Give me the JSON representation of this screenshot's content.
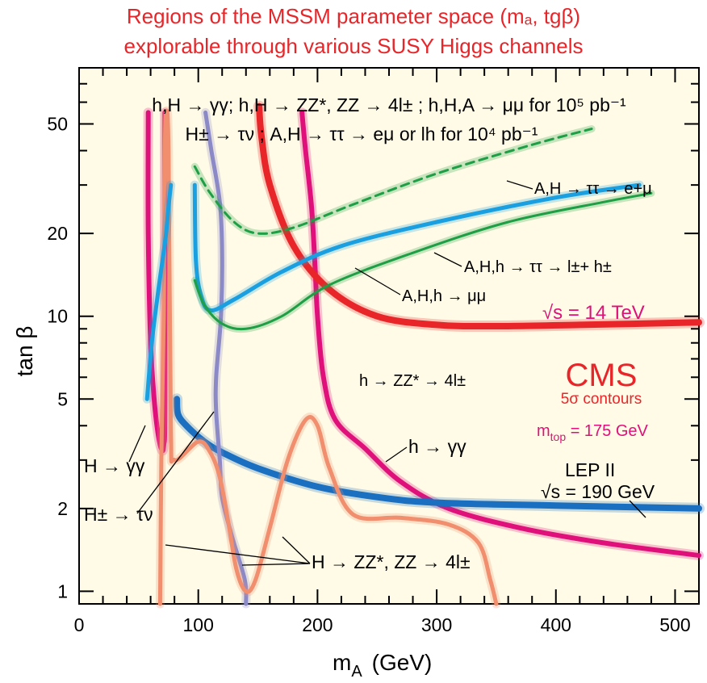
{
  "chart_data": {
    "type": "line",
    "title": [
      "Regions of the MSSM parameter space  (mₐ, tgβ)",
      "explorable through various  SUSY Higgs channels"
    ],
    "xlabel": "m",
    "xlabel_sub": "A",
    "xlabel_unit": "(GeV)",
    "ylabel": "tan β",
    "xlim": [
      0,
      520
    ],
    "ylim": [
      0.9,
      80
    ],
    "yscale": "log",
    "x_ticks": [
      "0",
      "100",
      "200",
      "300",
      "400",
      "500"
    ],
    "x_tick_values": [
      0,
      100,
      200,
      300,
      400,
      500
    ],
    "y_ticks": [
      "1",
      "2",
      "5",
      "10",
      "20",
      "50"
    ],
    "y_tick_values": [
      1,
      2,
      5,
      10,
      20,
      50
    ],
    "background_color": "#fffbe6",
    "header_lines": [
      "h,H → γγ;  h,H → ZZ*, ZZ → 4l± ; h,H,A →  μμ for 10⁵ pb⁻¹",
      "H± → τν ; A,H → ττ → eμ  or  lh  for 10⁴ pb⁻¹"
    ],
    "annotations": {
      "tautau_emu": "A,H → ττ → e+μ",
      "tautau_lh": "A,H,h → ττ → l±+ h±",
      "mumu": "A,H,h → μμ",
      "sqrt_s": "√s = 14 TeV",
      "zz_light": "h → ZZ* → 4l±",
      "cms": "CMS",
      "contours": "5σ contours",
      "mtop": "m",
      "mtop_sub": "top",
      "mtop_val": " = 175 GeV",
      "h_gamgam": "h → γγ",
      "lep": "LEP II",
      "lep_sqrt": "√s = 190 GeV",
      "H_gamgam": "H → γγ",
      "Hpm_taunu": "H± → τν",
      "H_zz": "H → ZZ*, ZZ → 4l±"
    },
    "series": [
      {
        "id": "h-gamgam",
        "color": "#e0107a",
        "width": 6,
        "points": [
          [
            187,
            55
          ],
          [
            190,
            40
          ],
          [
            195,
            25
          ],
          [
            198,
            15
          ],
          [
            200,
            10
          ],
          [
            205,
            6
          ],
          [
            215,
            4.2
          ],
          [
            240,
            3.3
          ],
          [
            270,
            2.5
          ],
          [
            310,
            2.0
          ],
          [
            370,
            1.7
          ],
          [
            440,
            1.5
          ],
          [
            520,
            1.35
          ]
        ]
      },
      {
        "id": "h-zz-4l",
        "color": "#e8262a",
        "width": 8,
        "points": [
          [
            151,
            58
          ],
          [
            153,
            45
          ],
          [
            160,
            30
          ],
          [
            180,
            18
          ],
          [
            210,
            12.5
          ],
          [
            250,
            10
          ],
          [
            300,
            9.3
          ],
          [
            350,
            9.2
          ],
          [
            420,
            9.3
          ],
          [
            520,
            9.5
          ]
        ]
      },
      {
        "id": "lep-ii",
        "color": "#1a6fc0",
        "width": 8,
        "points": [
          [
            82,
            5
          ],
          [
            83,
            4.4
          ],
          [
            90,
            4
          ],
          [
            105,
            3.5
          ],
          [
            120,
            3.2
          ],
          [
            150,
            2.8
          ],
          [
            200,
            2.4
          ],
          [
            250,
            2.2
          ],
          [
            300,
            2.1
          ],
          [
            400,
            2.05
          ],
          [
            520,
            2.0
          ]
        ]
      },
      {
        "id": "H-gamgam-left",
        "color": "#e0107a",
        "width": 6,
        "points": [
          [
            58,
            55
          ],
          [
            58,
            20
          ],
          [
            60,
            8
          ],
          [
            63,
            5
          ],
          [
            66,
            3.8
          ],
          [
            69,
            3.3
          ],
          [
            71,
            3.4
          ],
          [
            72,
            5
          ],
          [
            72,
            55
          ]
        ]
      },
      {
        "id": "Hpm-taunu",
        "color": "#8b89c6",
        "width": 5,
        "points": [
          [
            106,
            55
          ],
          [
            111,
            40
          ],
          [
            118,
            26
          ],
          [
            120,
            17
          ],
          [
            119,
            10
          ],
          [
            115,
            6
          ],
          [
            115,
            4.5
          ],
          [
            118,
            3
          ],
          [
            120,
            2.2
          ],
          [
            128,
            1.6
          ],
          [
            139,
            1.1
          ],
          [
            140,
            0.9
          ]
        ]
      },
      {
        "id": "H-zz-4l",
        "color": "#f08e6e",
        "width": 5,
        "points": [
          [
            68,
            0.9
          ],
          [
            69,
            3
          ],
          [
            71,
            10
          ],
          [
            72,
            40
          ],
          [
            73,
            55
          ],
          [
            75,
            40
          ],
          [
            77,
            4
          ],
          [
            80,
            3
          ],
          [
            100,
            3.5
          ],
          [
            110,
            3.2
          ],
          [
            118,
            2.6
          ],
          [
            125,
            1.8
          ],
          [
            132,
            1.2
          ],
          [
            140,
            1.0
          ],
          [
            148,
            1.1
          ],
          [
            160,
            1.7
          ],
          [
            175,
            3.0
          ],
          [
            190,
            4.2
          ],
          [
            200,
            4.0
          ],
          [
            210,
            2.8
          ],
          [
            230,
            1.9
          ],
          [
            270,
            1.85
          ],
          [
            310,
            1.75
          ],
          [
            335,
            1.5
          ],
          [
            345,
            1.1
          ],
          [
            350,
            0.9
          ]
        ]
      },
      {
        "id": "mumu",
        "color": "#1a9fe0",
        "width": 5,
        "points": [
          [
            97,
            30
          ],
          [
            98,
            16
          ],
          [
            102,
            12
          ],
          [
            110,
            10.5
          ],
          [
            130,
            11.5
          ],
          [
            170,
            14.5
          ],
          [
            220,
            18
          ],
          [
            300,
            22
          ],
          [
            400,
            27
          ],
          [
            470,
            30
          ]
        ]
      },
      {
        "id": "tautau-lh",
        "color": "#1e9e45",
        "width": 3,
        "points": [
          [
            97,
            13.5
          ],
          [
            105,
            11
          ],
          [
            120,
            9.4
          ],
          [
            140,
            9.0
          ],
          [
            170,
            10
          ],
          [
            210,
            13
          ],
          [
            280,
            17
          ],
          [
            360,
            22
          ],
          [
            440,
            26
          ],
          [
            480,
            28
          ]
        ]
      },
      {
        "id": "tautau-emu",
        "color": "#1e9e45",
        "width": 3,
        "dashed": true,
        "points": [
          [
            97,
            35
          ],
          [
            110,
            28
          ],
          [
            130,
            22
          ],
          [
            150,
            20
          ],
          [
            180,
            21
          ],
          [
            230,
            25.5
          ],
          [
            300,
            33
          ],
          [
            380,
            42
          ],
          [
            430,
            48
          ]
        ]
      },
      {
        "id": "H-gamgam-blue",
        "color": "#1a9fe0",
        "width": 5,
        "points": [
          [
            57,
            5
          ],
          [
            61,
            8
          ],
          [
            66,
            12
          ],
          [
            70,
            16
          ],
          [
            73,
            20
          ],
          [
            75,
            25
          ],
          [
            77,
            30
          ]
        ]
      }
    ]
  }
}
